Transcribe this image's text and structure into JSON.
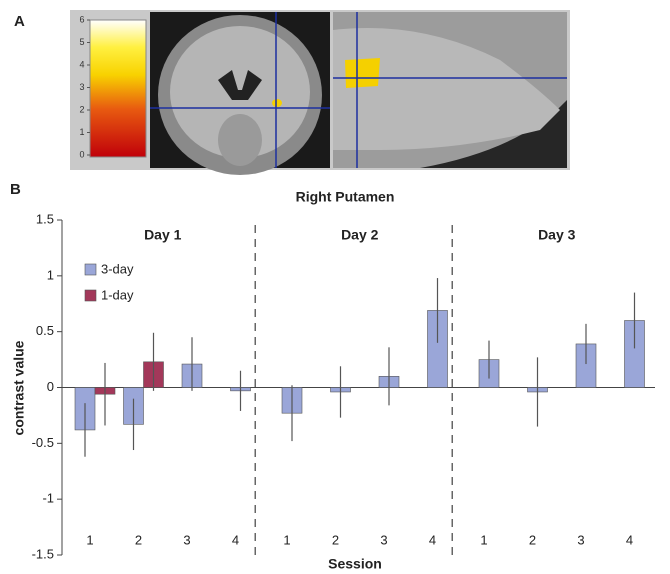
{
  "panel_a": {
    "label": "A",
    "colorbar_ticks": [
      0,
      1,
      2,
      3,
      4,
      5,
      6
    ]
  },
  "chart_data": {
    "type": "bar",
    "panel_label": "B",
    "title": "Right Putamen",
    "x_label": "Session",
    "y_label": "contrast value",
    "group_labels": [
      "Day 1",
      "Day 2",
      "Day 3"
    ],
    "categories": [
      "1",
      "2",
      "3",
      "4",
      "1",
      "2",
      "3",
      "4",
      "1",
      "2",
      "3",
      "4"
    ],
    "series": [
      {
        "name": "3-day",
        "color": "#9aa6d8",
        "values": [
          -0.38,
          -0.33,
          0.21,
          -0.03,
          -0.23,
          -0.04,
          0.1,
          0.69,
          0.25,
          -0.04,
          0.39,
          0.6
        ],
        "errors": [
          0.24,
          0.23,
          0.24,
          0.18,
          0.25,
          0.23,
          0.26,
          0.29,
          0.17,
          0.31,
          0.18,
          0.25
        ]
      },
      {
        "name": "1-day",
        "color": "#a3385a",
        "values": [
          -0.06,
          0.23,
          null,
          null,
          null,
          null,
          null,
          null,
          null,
          null,
          null,
          null
        ],
        "errors": [
          0.28,
          0.26,
          null,
          null,
          null,
          null,
          null,
          null,
          null,
          null,
          null,
          null
        ]
      }
    ],
    "ylim": [
      -1.5,
      1.5
    ],
    "yticks": [
      1.5,
      1,
      0.5,
      0,
      -0.5,
      -1,
      -1.5
    ],
    "legend": "upper left",
    "grid": false
  }
}
